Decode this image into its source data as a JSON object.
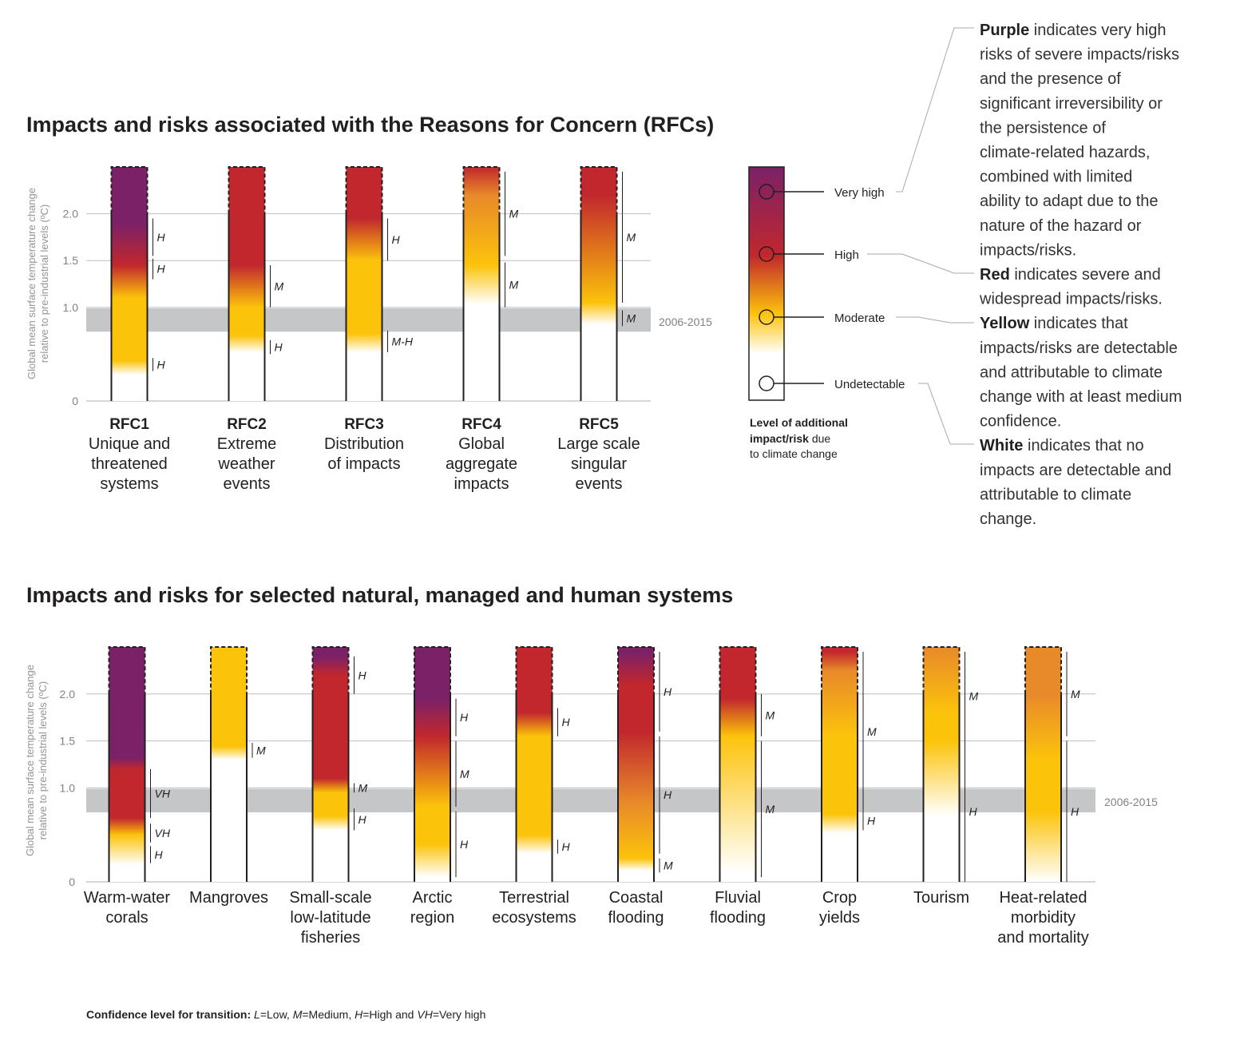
{
  "rfc_panel": {
    "title": "Impacts and risks associated with the Reasons for Concern (RFCs)",
    "ylabel_line1": "Global mean surface temperature change",
    "ylabel_line2": "relative to pre-industrial levels (ºC)",
    "band_label": "2006-2015"
  },
  "systems_panel": {
    "title": "Impacts and risks for selected natural, managed and human systems",
    "ylabel_line1": "Global mean surface temperature change",
    "ylabel_line2": "relative to pre-industrial levels (ºC)",
    "band_label": "2006-2015"
  },
  "legend": {
    "title_line1": "Level of additional",
    "title_line2_bold": "impact/risk",
    "title_line2_rest": " due",
    "title_line3": "to climate change",
    "levels": [
      {
        "label": "Very high",
        "color": "#7b2168"
      },
      {
        "label": "High",
        "color": "#c1272d"
      },
      {
        "label": "Moderate",
        "color": "#fcc30b"
      },
      {
        "label": "Undetectable",
        "color": "#ffffff"
      }
    ]
  },
  "explanation": {
    "purple_word": "Purple",
    "purple_lines": [
      " indicates very high",
      "risks of severe impacts/risks",
      "and the presence of",
      "significant irreversibility or",
      "the persistence of",
      "climate-related hazards,",
      "combined with limited",
      "ability to adapt due to the",
      "nature of the hazard or",
      "impacts/risks."
    ],
    "red_word": "Red",
    "red_lines": [
      " indicates severe and",
      "widespread impacts/risks."
    ],
    "yellow_word": "Yellow",
    "yellow_lines": [
      " indicates that",
      "impacts/risks are detectable",
      "and attributable to climate",
      "change with at least medium",
      "confidence."
    ],
    "white_word": "White",
    "white_lines": [
      " indicates that no",
      "impacts are detectable and",
      "attributable to climate",
      "change."
    ]
  },
  "footnote": {
    "bold": "Confidence level  for transition:",
    "parts": [
      {
        "text": " ",
        "italic": false
      },
      {
        "text": "L",
        "italic": true
      },
      {
        "text": "=Low, ",
        "italic": false
      },
      {
        "text": "M",
        "italic": true
      },
      {
        "text": "=Medium, ",
        "italic": false
      },
      {
        "text": "H",
        "italic": true
      },
      {
        "text": "=High and ",
        "italic": false
      },
      {
        "text": "VH",
        "italic": true
      },
      {
        "text": "=Very high",
        "italic": false
      }
    ]
  },
  "chart_data": [
    {
      "type": "bar",
      "id": "rfc",
      "title": "Impacts and risks associated with the Reasons for Concern (RFCs)",
      "ylabel": "Global mean surface temperature change relative to pre-industrial levels (ºC)",
      "ylim": [
        0,
        2.5
      ],
      "yticks": [
        "0",
        "1.0",
        "1.5",
        "2.0"
      ],
      "gridlines": [
        1.0,
        1.5,
        2.0
      ],
      "shaded_band": {
        "from": 0.74,
        "to": 0.99,
        "label": "2006-2015"
      },
      "bars": [
        {
          "code": "RFC1",
          "name": [
            "Unique and",
            "threatened",
            "systems"
          ],
          "stops": [
            [
              0.28,
              "w"
            ],
            [
              0.43,
              "y"
            ],
            [
              1.1,
              "y"
            ],
            [
              1.45,
              "r"
            ],
            [
              1.9,
              "p"
            ]
          ],
          "confidence": [
            {
              "label": "H",
              "from": 0.32,
              "to": 0.46
            },
            {
              "label": "H",
              "from": 1.3,
              "to": 1.52
            },
            {
              "label": "H",
              "from": 1.55,
              "to": 1.95
            }
          ]
        },
        {
          "code": "RFC2",
          "name": [
            "Extreme",
            "weather",
            "events"
          ],
          "stops": [
            [
              0.52,
              "w"
            ],
            [
              0.7,
              "y"
            ],
            [
              1.0,
              "y"
            ],
            [
              1.45,
              "r"
            ]
          ],
          "confidence": [
            {
              "label": "H",
              "from": 0.5,
              "to": 0.65
            },
            {
              "label": "M",
              "from": 1.0,
              "to": 1.45
            }
          ]
        },
        {
          "code": "RFC3",
          "name": [
            "Distribution",
            "of impacts"
          ],
          "stops": [
            [
              0.52,
              "w"
            ],
            [
              0.72,
              "y"
            ],
            [
              1.5,
              "y"
            ],
            [
              1.95,
              "r"
            ]
          ],
          "confidence": [
            {
              "label": "M-H",
              "from": 0.52,
              "to": 0.75
            },
            {
              "label": "H",
              "from": 1.5,
              "to": 1.95
            }
          ]
        },
        {
          "code": "RFC4",
          "name": [
            "Global",
            "aggregate",
            "impacts"
          ],
          "stops": [
            [
              1.03,
              "w"
            ],
            [
              1.45,
              "y"
            ],
            [
              2.2,
              "o"
            ],
            [
              2.5,
              "r"
            ]
          ],
          "confidence": [
            {
              "label": "M",
              "from": 1.0,
              "to": 1.48
            },
            {
              "label": "M",
              "from": 1.55,
              "to": 2.45
            }
          ]
        },
        {
          "code": "RFC5",
          "name": [
            "Large scale",
            "singular",
            "events"
          ],
          "stops": [
            [
              0.82,
              "w"
            ],
            [
              1.05,
              "y"
            ],
            [
              2.2,
              "r"
            ]
          ],
          "confidence": [
            {
              "label": "M",
              "from": 0.8,
              "to": 0.97
            },
            {
              "label": "M",
              "from": 1.05,
              "to": 2.45
            }
          ]
        }
      ]
    },
    {
      "type": "bar",
      "id": "systems",
      "title": "Impacts and risks for selected natural, managed and human systems",
      "ylabel": "Global mean surface temperature change relative to pre-industrial levels (ºC)",
      "ylim": [
        0,
        2.5
      ],
      "yticks": [
        "0",
        "1.0",
        "1.5",
        "2.0"
      ],
      "gridlines": [
        1.0,
        1.5,
        2.0
      ],
      "shaded_band": {
        "from": 0.74,
        "to": 0.99,
        "label": "2006-2015"
      },
      "bars": [
        {
          "name": [
            "Warm-water",
            "corals"
          ],
          "stops": [
            [
              0.18,
              "w"
            ],
            [
              0.5,
              "y"
            ],
            [
              0.68,
              "r"
            ],
            [
              1.2,
              "r"
            ],
            [
              1.32,
              "p"
            ]
          ],
          "confidence": [
            {
              "label": "H",
              "from": 0.2,
              "to": 0.38
            },
            {
              "label": "VH",
              "from": 0.42,
              "to": 0.62
            },
            {
              "label": "VH",
              "from": 0.68,
              "to": 1.2
            }
          ]
        },
        {
          "name": [
            "Mangroves"
          ],
          "stops": [
            [
              1.3,
              "w"
            ],
            [
              1.44,
              "y"
            ]
          ],
          "confidence": [
            {
              "label": "M",
              "from": 1.32,
              "to": 1.48
            }
          ]
        },
        {
          "name": [
            "Small-scale",
            "low-latitude",
            "fisheries"
          ],
          "stops": [
            [
              0.55,
              "w"
            ],
            [
              0.7,
              "y"
            ],
            [
              0.95,
              "y"
            ],
            [
              1.1,
              "r"
            ],
            [
              2.2,
              "r"
            ],
            [
              2.4,
              "p"
            ]
          ],
          "confidence": [
            {
              "label": "H",
              "from": 0.55,
              "to": 0.78
            },
            {
              "label": "M",
              "from": 0.95,
              "to": 1.05
            },
            {
              "label": "H",
              "from": 2.0,
              "to": 2.4
            }
          ]
        },
        {
          "name": [
            "Arctic",
            "region"
          ],
          "stops": [
            [
              0.05,
              "w"
            ],
            [
              0.4,
              "y"
            ],
            [
              0.8,
              "y"
            ],
            [
              1.55,
              "r"
            ],
            [
              1.95,
              "p"
            ]
          ],
          "confidence": [
            {
              "label": "H",
              "from": 0.05,
              "to": 0.75
            },
            {
              "label": "M",
              "from": 0.8,
              "to": 1.5
            },
            {
              "label": "H",
              "from": 1.55,
              "to": 1.95
            }
          ]
        },
        {
          "name": [
            "Terrestrial",
            "ecosystems"
          ],
          "stops": [
            [
              0.3,
              "w"
            ],
            [
              0.5,
              "y"
            ],
            [
              1.55,
              "y"
            ],
            [
              1.8,
              "r"
            ]
          ],
          "confidence": [
            {
              "label": "H",
              "from": 0.3,
              "to": 0.45
            },
            {
              "label": "H",
              "from": 1.55,
              "to": 1.85
            }
          ]
        },
        {
          "name": [
            "Coastal",
            "flooding"
          ],
          "stops": [
            [
              0.12,
              "w"
            ],
            [
              0.25,
              "y"
            ],
            [
              0.85,
              "o"
            ],
            [
              1.6,
              "r"
            ],
            [
              2.1,
              "r"
            ],
            [
              2.45,
              "p"
            ]
          ],
          "confidence": [
            {
              "label": "M",
              "from": 0.1,
              "to": 0.25
            },
            {
              "label": "H",
              "from": 0.3,
              "to": 1.55
            },
            {
              "label": "H",
              "from": 1.6,
              "to": 2.45
            }
          ]
        },
        {
          "name": [
            "Fluvial",
            "flooding"
          ],
          "stops": [
            [
              0.1,
              "w"
            ],
            [
              1.55,
              "y"
            ],
            [
              1.95,
              "r"
            ]
          ],
          "confidence": [
            {
              "label": "M",
              "from": 0.05,
              "to": 1.5
            },
            {
              "label": "M",
              "from": 1.55,
              "to": 2.0
            }
          ]
        },
        {
          "name": [
            "Crop",
            "yields"
          ],
          "stops": [
            [
              0.52,
              "w"
            ],
            [
              0.72,
              "y"
            ],
            [
              1.55,
              "y"
            ],
            [
              2.25,
              "o"
            ],
            [
              2.45,
              "r"
            ]
          ],
          "confidence": [
            {
              "label": "H",
              "from": 0.55,
              "to": 0.75
            },
            {
              "label": "M",
              "from": 0.75,
              "to": 2.45
            }
          ]
        },
        {
          "name": [
            "Tourism"
          ],
          "stops": [
            [
              0.7,
              "w"
            ],
            [
              1.5,
              "y"
            ],
            [
              1.8,
              "y"
            ],
            [
              2.5,
              "o"
            ]
          ],
          "confidence": [
            {
              "label": "H",
              "from": 0.0,
              "to": 1.5
            },
            {
              "label": "M",
              "from": 1.5,
              "to": 2.45
            }
          ]
        },
        {
          "name": [
            "Heat-related",
            "morbidity",
            "and mortality"
          ],
          "stops": [
            [
              0.0,
              "w"
            ],
            [
              0.75,
              "y"
            ],
            [
              1.3,
              "y"
            ],
            [
              2.0,
              "o"
            ],
            [
              2.5,
              "o"
            ]
          ],
          "confidence": [
            {
              "label": "H",
              "from": 0.0,
              "to": 1.5
            },
            {
              "label": "M",
              "from": 1.55,
              "to": 2.45
            }
          ]
        }
      ]
    }
  ]
}
